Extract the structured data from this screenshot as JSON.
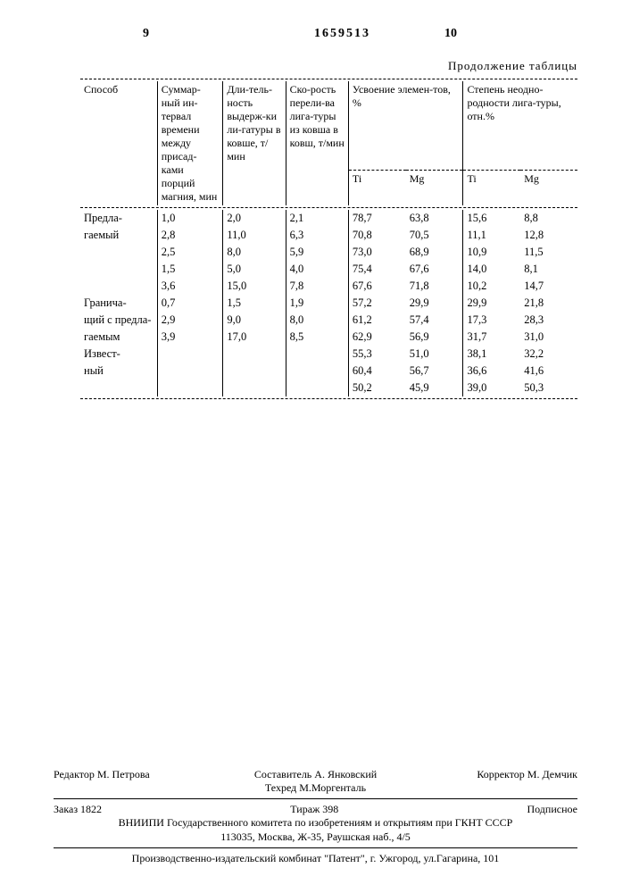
{
  "page": {
    "left_num": "9",
    "doc_num": "1659513",
    "right_num": "10",
    "caption": "Продолжение таблицы"
  },
  "headers": {
    "c1": "Способ",
    "c2": "Суммар-ный ин-тервал времени между присад-ками порций магния, мин",
    "c3": "Дли-тель-ность выдерж-ки ли-гатуры в ковше, т/мин",
    "c4": "Ско-рость перели-ва лига-туры из ковша в ковш, т/мин",
    "c5top": "Усвоение элемен-тов, %",
    "c5a": "Ti",
    "c5b": "Mg",
    "c6top": "Степень неодно-родности лига-туры, отн.%",
    "c6a": "Ti",
    "c6b": "Mg"
  },
  "groups": [
    {
      "label": "Предла-гаемый",
      "rows": [
        [
          "1,0",
          "2,0",
          "2,1",
          "78,7",
          "63,8",
          "15,6",
          "8,8"
        ],
        [
          "2,8",
          "11,0",
          "6,3",
          "70,8",
          "70,5",
          "11,1",
          "12,8"
        ],
        [
          "2,5",
          "8,0",
          "5,9",
          "73,0",
          "68,9",
          "10,9",
          "11,5"
        ],
        [
          "1,5",
          "5,0",
          "4,0",
          "75,4",
          "67,6",
          "14,0",
          "8,1"
        ],
        [
          "3,6",
          "15,0",
          "7,8",
          "67,6",
          "71,8",
          "10,2",
          "14,7"
        ]
      ]
    },
    {
      "label": "Гранича-щий с предла-гаемым",
      "rows": [
        [
          "0,7",
          "1,5",
          "1,9",
          "57,2",
          "29,9",
          "29,9",
          "21,8"
        ],
        [
          "2,9",
          "9,0",
          "8,0",
          "61,2",
          "57,4",
          "17,3",
          "28,3"
        ],
        [
          "3,9",
          "17,0",
          "8,5",
          "62,9",
          "56,9",
          "31,7",
          "31,0"
        ]
      ]
    },
    {
      "label": "Извест-ный",
      "rows": [
        [
          "",
          "",
          "",
          "55,3",
          "51,0",
          "38,1",
          "32,2"
        ],
        [
          "",
          "",
          "",
          "60,4",
          "56,7",
          "36,6",
          "41,6"
        ],
        [
          "",
          "",
          "",
          "50,2",
          "45,9",
          "39,0",
          "50,3"
        ]
      ]
    }
  ],
  "footer": {
    "editor": "Редактор М. Петрова",
    "compiler": "Составитель А. Янковский",
    "tech": "Техред М.Моргенталь",
    "corrector": "Корректор М. Демчик",
    "order": "Заказ 1822",
    "tirazh": "Тираж 398",
    "podpis": "Подписное",
    "org1": "ВНИИПИ Государственного комитета по изобретениям и открытиям при ГКНТ СССР",
    "org2": "113035, Москва, Ж-35, Раушская наб., 4/5",
    "printer": "Производственно-издательский комбинат \"Патент\", г. Ужгород, ул.Гагарина, 101"
  }
}
